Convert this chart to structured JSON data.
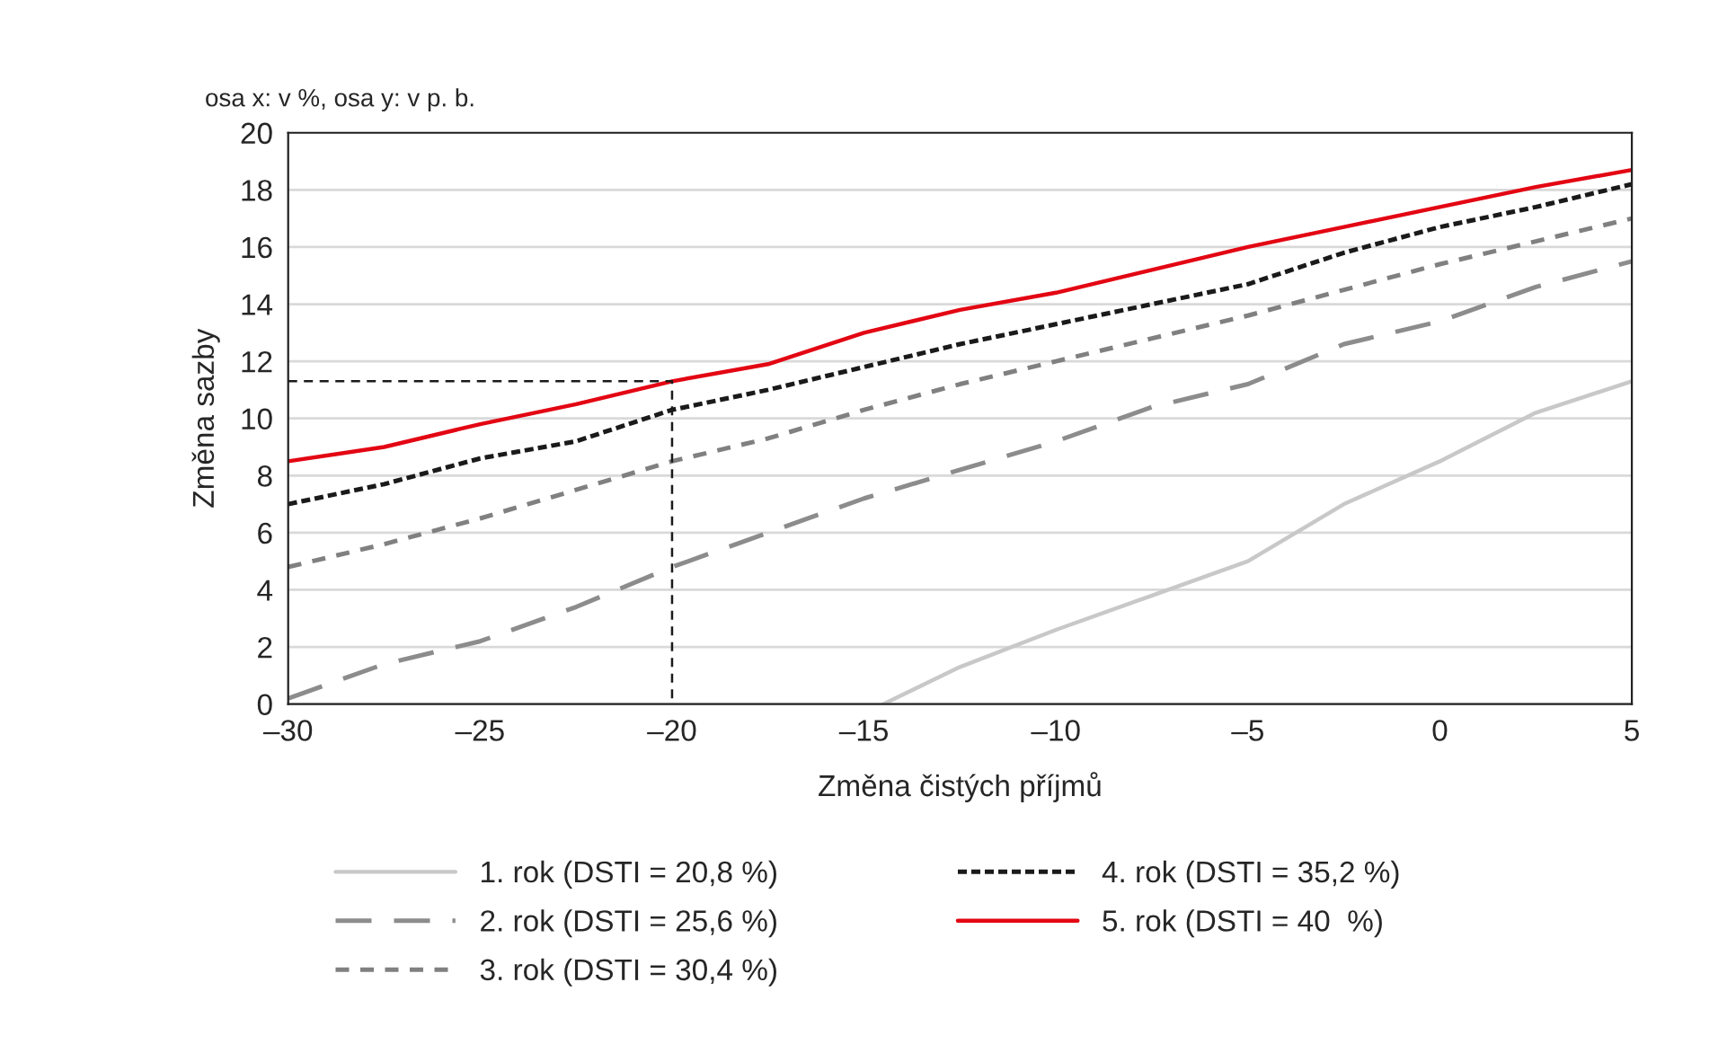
{
  "chart_data": {
    "type": "line",
    "xlabel": "Změna čistých příjmů",
    "ylabel": "Změna sazby",
    "annotations": [
      "osa x: v %, osa y: v p. b."
    ],
    "xlim": [
      -30,
      5
    ],
    "xticks": [
      {
        "value": -30,
        "label": "–30"
      },
      {
        "value": -25,
        "label": "–25"
      },
      {
        "value": -20,
        "label": "–20"
      },
      {
        "value": -15,
        "label": "–15"
      },
      {
        "value": -10,
        "label": "–10"
      },
      {
        "value": -5,
        "label": "–5"
      },
      0,
      5
    ],
    "ylim": [
      0,
      20
    ],
    "yticks": [
      0,
      2,
      4,
      6,
      8,
      10,
      12,
      14,
      16,
      18,
      20
    ],
    "grid": "y",
    "legend": "bottom",
    "marker": "none",
    "series": [
      {
        "name": "1. rok (DSTI = 20,8 %)",
        "color": "#c8c8c8",
        "line_style": "solid",
        "x": [
          -14.5,
          -12.5,
          -10,
          -7.5,
          -5,
          -2.5,
          0,
          2.5,
          5
        ],
        "values": [
          0,
          1.3,
          2.6,
          3.8,
          5.0,
          7.0,
          8.5,
          10.2,
          11.3
        ]
      },
      {
        "name": "2. rok (DSTI = 25,6 %)",
        "color": "#8c8c8c",
        "line_style": "longdash",
        "x": [
          -30,
          -27.5,
          -25,
          -22.5,
          -20,
          -17.5,
          -15,
          -12.5,
          -10,
          -7.5,
          -5,
          -2.5,
          0,
          2.5,
          5
        ],
        "values": [
          0.2,
          1.4,
          2.2,
          3.4,
          4.8,
          6.0,
          7.2,
          8.2,
          9.2,
          10.4,
          11.2,
          12.6,
          13.4,
          14.6,
          15.5
        ]
      },
      {
        "name": "3. rok (DSTI = 30,4 %)",
        "color": "#808080",
        "line_style": "dashed",
        "x": [
          -30,
          -27.5,
          -25,
          -22.5,
          -20,
          -17.5,
          -15,
          -12.5,
          -10,
          -7.5,
          -5,
          -2.5,
          0,
          2.5,
          5
        ],
        "values": [
          4.8,
          5.6,
          6.5,
          7.5,
          8.5,
          9.3,
          10.3,
          11.2,
          12.0,
          12.8,
          13.6,
          14.5,
          15.4,
          16.2,
          17.0
        ]
      },
      {
        "name": "4. rok (DSTI = 35,2 %)",
        "color": "#1a1a1a",
        "line_style": "dotted",
        "x": [
          -30,
          -27.5,
          -25,
          -22.5,
          -20,
          -17.5,
          -15,
          -12.5,
          -10,
          -7.5,
          -5,
          -2.5,
          0,
          2.5,
          5
        ],
        "values": [
          7.0,
          7.7,
          8.6,
          9.2,
          10.3,
          11.0,
          11.8,
          12.6,
          13.3,
          14.0,
          14.7,
          15.8,
          16.7,
          17.4,
          18.2
        ]
      },
      {
        "name": "5. rok (DSTI = 40  %)",
        "color": "#e30613",
        "line_style": "solid",
        "x": [
          -30,
          -27.5,
          -25,
          -22.5,
          -20,
          -17.5,
          -15,
          -12.5,
          -10,
          -7.5,
          -5,
          -2.5,
          0,
          2.5,
          5
        ],
        "values": [
          8.5,
          9.0,
          9.8,
          10.5,
          11.3,
          11.9,
          13.0,
          13.8,
          14.4,
          15.2,
          16.0,
          16.7,
          17.4,
          18.1,
          18.7
        ]
      },
      {
        "color": "#1a1a1a",
        "line_style": "thin_dashed",
        "x": [
          -30,
          -20,
          -20
        ],
        "values": [
          11.3,
          11.3,
          0
        ]
      }
    ]
  }
}
